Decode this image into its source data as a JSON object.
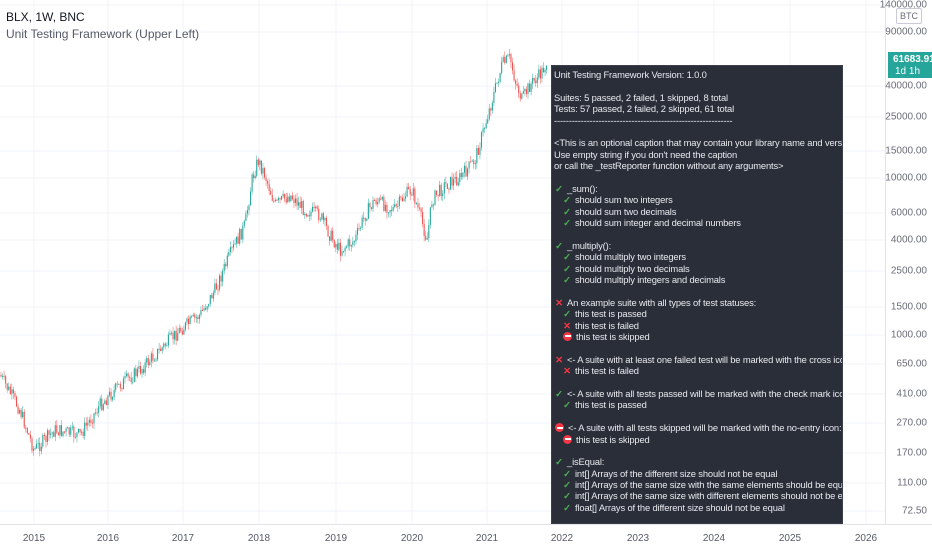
{
  "chart": {
    "symbol": "BLX, 1W, BNC",
    "indicator": "Unit Testing Framework (Upper Left)",
    "currency": "BTC",
    "last_price": "61683.91",
    "last_price_sub": "1d 1h",
    "colors": {
      "up": "#26a69a",
      "down": "#ef5350",
      "panel_bg": "#2a2e39",
      "pass": "#4caf50",
      "fail": "#f23645"
    },
    "price_labels": [
      "140000.00",
      "90000.00",
      "40000.00",
      "25000.00",
      "15000.00",
      "10000.00",
      "6000.00",
      "4000.00",
      "2500.00",
      "1500.00",
      "1000.00",
      "650.00",
      "410.00",
      "270.00",
      "170.00",
      "110.00",
      "72.50"
    ],
    "years": [
      "2015",
      "2016",
      "2017",
      "2018",
      "2019",
      "2020",
      "2021",
      "2022",
      "2023",
      "2024",
      "2025",
      "2026"
    ]
  },
  "panel": {
    "lines": [
      {
        "text": "Unit Testing Framework Version: 1.0.0",
        "icon": "",
        "indent": 0
      },
      {
        "text": "",
        "icon": "",
        "indent": 0
      },
      {
        "text": "Suites: 5 passed, 2 failed, 1 skipped, 8 total",
        "icon": "",
        "indent": 0
      },
      {
        "text": "Tests: 57 passed, 2 failed, 2 skipped, 61 total",
        "icon": "",
        "indent": 0
      },
      {
        "text": "------------------------------------------------------------",
        "icon": "",
        "indent": 0
      },
      {
        "text": "",
        "icon": "",
        "indent": 0
      },
      {
        "text": "<This is an optional caption that may contain your library name and version.",
        "icon": "",
        "indent": 0
      },
      {
        "text": "Use empty string if you don't need the caption",
        "icon": "",
        "indent": 0
      },
      {
        "text": "or call the _testReporter function without any arguments>",
        "icon": "",
        "indent": 0
      },
      {
        "text": "",
        "icon": "",
        "indent": 0
      },
      {
        "text": "_sum():",
        "icon": "pass",
        "indent": 0
      },
      {
        "text": "should sum two integers",
        "icon": "pass",
        "indent": 1
      },
      {
        "text": "should sum two decimals",
        "icon": "pass",
        "indent": 1
      },
      {
        "text": "should sum integer and decimal numbers",
        "icon": "pass",
        "indent": 1
      },
      {
        "text": "",
        "icon": "",
        "indent": 0
      },
      {
        "text": "_multiply():",
        "icon": "pass",
        "indent": 0
      },
      {
        "text": "should multiply two integers",
        "icon": "pass",
        "indent": 1
      },
      {
        "text": "should multiply two decimals",
        "icon": "pass",
        "indent": 1
      },
      {
        "text": "should multiply integers and decimals",
        "icon": "pass",
        "indent": 1
      },
      {
        "text": "",
        "icon": "",
        "indent": 0
      },
      {
        "text": "An example suite with all types of test statuses:",
        "icon": "fail",
        "indent": 0
      },
      {
        "text": "this test is passed",
        "icon": "pass",
        "indent": 1
      },
      {
        "text": "this test is failed",
        "icon": "fail",
        "indent": 1
      },
      {
        "text": "this test is skipped",
        "icon": "skip",
        "indent": 1
      },
      {
        "text": "",
        "icon": "",
        "indent": 0
      },
      {
        "text": "<- A suite with at least one failed test will be marked with the cross icon:",
        "icon": "fail",
        "indent": 0
      },
      {
        "text": "this test is failed",
        "icon": "fail",
        "indent": 1
      },
      {
        "text": "",
        "icon": "",
        "indent": 0
      },
      {
        "text": "<- A suite with all tests passed will be marked with the check mark icon:",
        "icon": "pass",
        "indent": 0
      },
      {
        "text": "this test is passed",
        "icon": "pass",
        "indent": 1
      },
      {
        "text": "",
        "icon": "",
        "indent": 0
      },
      {
        "text": "<- A suite with all tests skipped will be marked with the no-entry icon:",
        "icon": "skip",
        "indent": 0
      },
      {
        "text": "this test is skipped",
        "icon": "skip",
        "indent": 1
      },
      {
        "text": "",
        "icon": "",
        "indent": 0
      },
      {
        "text": "_isEqual:",
        "icon": "pass",
        "indent": 0
      },
      {
        "text": "int[] Arrays of the different size should not be equal",
        "icon": "pass",
        "indent": 1
      },
      {
        "text": "int[] Arrays of the same size with the same elements should be equal",
        "icon": "pass",
        "indent": 1
      },
      {
        "text": "int[] Arrays of the same size with different elements should not be equal",
        "icon": "pass",
        "indent": 1
      },
      {
        "text": "float[] Arrays of the different size should not be equal",
        "icon": "pass",
        "indent": 1
      }
    ]
  }
}
